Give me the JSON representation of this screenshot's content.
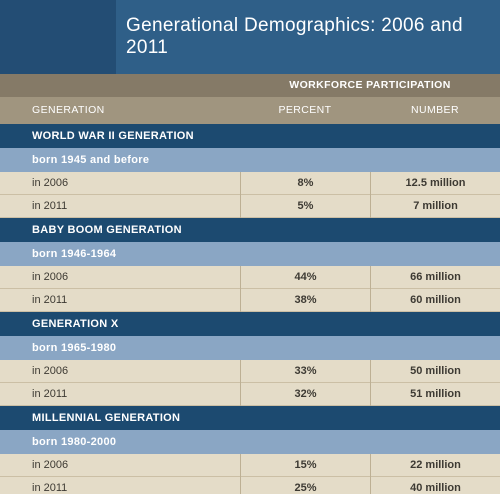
{
  "title": "Generational Demographics: 2006 and 2011",
  "workforce_label": "WORKFORCE PARTICIPATION",
  "columns": {
    "generation": "GENERATION",
    "percent": "PERCENT",
    "number": "NUMBER"
  },
  "groups": [
    {
      "name": "WORLD WAR II GENERATION",
      "born": "born 1945 and before",
      "rows": [
        {
          "label": "in 2006",
          "percent": "8%",
          "number": "12.5 million"
        },
        {
          "label": "in 2011",
          "percent": "5%",
          "number": "7 million"
        }
      ]
    },
    {
      "name": "BABY BOOM GENERATION",
      "born": "born 1946-1964",
      "rows": [
        {
          "label": "in 2006",
          "percent": "44%",
          "number": "66 million"
        },
        {
          "label": "in 2011",
          "percent": "38%",
          "number": "60 million"
        }
      ]
    },
    {
      "name": "GENERATION X",
      "born": "born 1965-1980",
      "rows": [
        {
          "label": "in 2006",
          "percent": "33%",
          "number": "50 million"
        },
        {
          "label": "in 2011",
          "percent": "32%",
          "number": "51 million"
        }
      ]
    },
    {
      "name": "MILLENNIAL GENERATION",
      "born": "born 1980-2000",
      "rows": [
        {
          "label": "in 2006",
          "percent": "15%",
          "number": "22 million"
        },
        {
          "label": "in 2011",
          "percent": "25%",
          "number": "40 million"
        }
      ]
    }
  ]
}
